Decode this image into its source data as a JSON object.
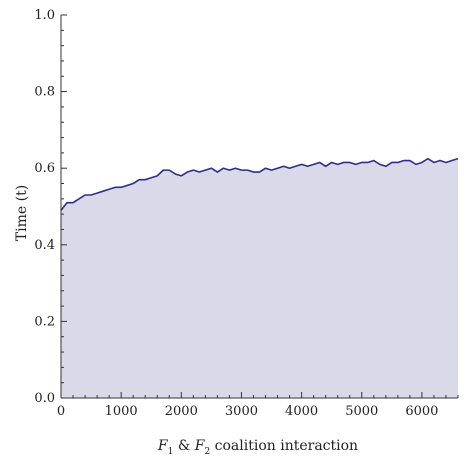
{
  "chart_data": {
    "type": "area",
    "title": "",
    "xlabel": "F1 & F2 coalition interaction",
    "xlabel_parts": {
      "f1_letter": "F",
      "f1_sub": "1",
      "amp": " & ",
      "f2_letter": "F",
      "f2_sub": "2",
      "rest": " coalition interaction"
    },
    "ylabel": "Time (t)",
    "xlim": [
      0,
      6600
    ],
    "ylim": [
      0,
      1.0
    ],
    "x_ticks": [
      "0",
      "1000",
      "2000",
      "3000",
      "4000",
      "5000",
      "6000"
    ],
    "y_ticks": [
      "0.0",
      "0.2",
      "0.4",
      "0.6",
      "0.8",
      "1.0"
    ],
    "grid": false,
    "colors": {
      "line": "#2e2f86",
      "fill": "#d9d9ea",
      "axis": "#333333"
    },
    "series": [
      {
        "x": [
          0,
          50,
          100,
          200,
          300,
          400,
          500,
          600,
          700,
          800,
          900,
          1000,
          1100,
          1200,
          1300,
          1400,
          1500,
          1600,
          1700,
          1800,
          1900,
          2000,
          2100,
          2200,
          2300,
          2400,
          2500,
          2600,
          2700,
          2800,
          2900,
          3000,
          3100,
          3200,
          3300,
          3400,
          3500,
          3600,
          3700,
          3800,
          3900,
          4000,
          4100,
          4200,
          4300,
          4400,
          4500,
          4600,
          4700,
          4800,
          4900,
          5000,
          5100,
          5200,
          5300,
          5400,
          5500,
          5600,
          5700,
          5800,
          5900,
          6000,
          6100,
          6200,
          6300,
          6400,
          6500,
          6600
        ],
        "y": [
          0.49,
          0.5,
          0.51,
          0.51,
          0.52,
          0.53,
          0.53,
          0.535,
          0.54,
          0.545,
          0.55,
          0.55,
          0.555,
          0.56,
          0.57,
          0.57,
          0.575,
          0.58,
          0.595,
          0.595,
          0.585,
          0.58,
          0.59,
          0.595,
          0.59,
          0.595,
          0.6,
          0.59,
          0.6,
          0.595,
          0.6,
          0.595,
          0.595,
          0.59,
          0.59,
          0.6,
          0.595,
          0.6,
          0.605,
          0.6,
          0.605,
          0.61,
          0.605,
          0.61,
          0.615,
          0.605,
          0.615,
          0.61,
          0.615,
          0.615,
          0.61,
          0.615,
          0.615,
          0.62,
          0.61,
          0.605,
          0.615,
          0.615,
          0.62,
          0.62,
          0.61,
          0.615,
          0.625,
          0.615,
          0.62,
          0.615,
          0.62,
          0.625
        ]
      }
    ]
  }
}
